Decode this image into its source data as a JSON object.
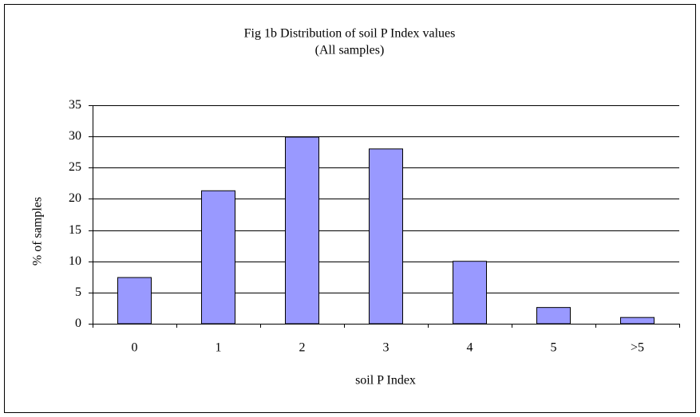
{
  "chart_data": {
    "type": "bar",
    "title": "Fig 1b Distribution of soil P Index values",
    "subtitle": "(All samples)",
    "x_label": "soil P Index",
    "y_label": "% of samples",
    "categories": [
      "0",
      "1",
      "2",
      "3",
      "4",
      "5",
      ">5"
    ],
    "values": [
      7.4,
      21.3,
      29.9,
      28.0,
      10.0,
      2.6,
      1.0
    ],
    "color": "#9999ff",
    "ylim": [
      0,
      35
    ],
    "yticks": [
      0,
      5,
      10,
      15,
      20,
      25,
      30,
      35
    ],
    "grid": true
  }
}
